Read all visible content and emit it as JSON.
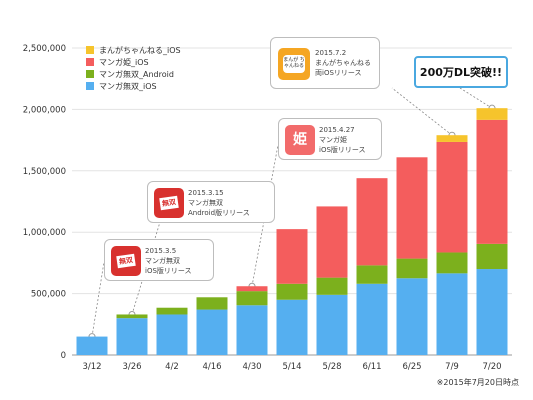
{
  "chart_data": {
    "type": "bar",
    "stacked": true,
    "categories": [
      "3/12",
      "3/26",
      "4/2",
      "4/16",
      "4/30",
      "5/14",
      "5/28",
      "6/11",
      "6/25",
      "7/9",
      "7/20"
    ],
    "series": [
      {
        "name": "マンガ無双_iOS",
        "color": "#55aff0",
        "values": [
          150000,
          300000,
          330000,
          370000,
          405000,
          450000,
          490000,
          580000,
          625000,
          665000,
          700000
        ]
      },
      {
        "name": "マンガ無双_Android",
        "color": "#7cb01d",
        "values": [
          0,
          30000,
          55000,
          100000,
          115000,
          130000,
          140000,
          150000,
          160000,
          170000,
          205000
        ]
      },
      {
        "name": "マンガ姫_iOS",
        "color": "#f45d5d",
        "values": [
          0,
          0,
          0,
          0,
          40000,
          445000,
          580000,
          710000,
          825000,
          900000,
          1010000
        ]
      },
      {
        "name": "まんがちゃんねる_iOS",
        "color": "#f6c42c",
        "values": [
          0,
          0,
          0,
          0,
          0,
          0,
          0,
          0,
          0,
          55000,
          95000
        ]
      }
    ],
    "ylim": [
      0,
      2500000
    ],
    "yticks": [
      "0",
      "500,000",
      "1,000,000",
      "1,500,000",
      "2,000,000",
      "2,500,000"
    ],
    "grid": true,
    "legend": "top-left",
    "legend_order": [
      "まんがちゃんねる_iOS",
      "マンガ姫_iOS",
      "マンガ無双_Android",
      "マンガ無双_iOS"
    ]
  },
  "annotations": {
    "muso_ios": {
      "date": "2015.3.5",
      "line1": "マンガ無双",
      "line2": "iOS版リリース",
      "icon_text": "無双"
    },
    "muso_android": {
      "date": "2015.3.15",
      "line1": "マンガ無双",
      "line2": "Android版リリース",
      "icon_text": "無双"
    },
    "hime": {
      "date": "2015.4.27",
      "line1": "マンガ姫",
      "line2": "iOS版リリース",
      "icon_text": "姫"
    },
    "chan": {
      "date": "2015.7.2",
      "line1": "まんがちゃんねる",
      "line2": "両iOSリリース",
      "icon_text": "まんが ちゃんねる"
    },
    "headline": "200万DL突破!!"
  },
  "note": "※2015年7月20日時点"
}
